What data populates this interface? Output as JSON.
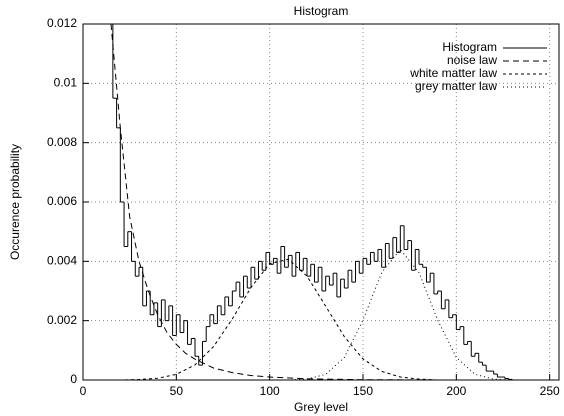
{
  "chart_data": {
    "type": "line",
    "title": "Histogram",
    "x_label": "Grey level",
    "y_label": "Occurence probability",
    "xlim": [
      0,
      255
    ],
    "ylim": [
      0,
      0.012
    ],
    "xticks": [
      0,
      50,
      100,
      150,
      200,
      250
    ],
    "yticks": [
      0,
      0.002,
      0.004,
      0.006,
      0.008,
      0.01,
      0.012
    ],
    "grid": true,
    "legend": "top right",
    "series": [
      {
        "name": "Histogram",
        "color": "#000000",
        "style": "steps",
        "x": [
          14,
          16,
          18,
          20,
          22,
          24,
          26,
          28,
          30,
          32,
          34,
          36,
          38,
          40,
          42,
          44,
          46,
          48,
          50,
          52,
          54,
          56,
          58,
          60,
          62,
          64,
          66,
          68,
          70,
          72,
          74,
          76,
          78,
          80,
          82,
          84,
          86,
          88,
          90,
          92,
          94,
          96,
          98,
          100,
          102,
          104,
          106,
          108,
          110,
          112,
          114,
          116,
          118,
          120,
          122,
          124,
          126,
          128,
          130,
          132,
          134,
          136,
          138,
          140,
          142,
          144,
          146,
          148,
          150,
          152,
          154,
          156,
          158,
          160,
          162,
          164,
          166,
          168,
          170,
          172,
          174,
          176,
          178,
          180,
          182,
          184,
          186,
          188,
          190,
          192,
          194,
          196,
          198,
          200,
          202,
          204,
          206,
          208,
          210,
          212,
          214,
          216,
          218,
          220,
          222,
          224,
          226,
          228,
          230
        ],
        "values": [
          0.012,
          0.0095,
          0.0085,
          0.006,
          0.0045,
          0.005,
          0.004,
          0.0035,
          0.0038,
          0.0025,
          0.003,
          0.0022,
          0.0026,
          0.0018,
          0.0027,
          0.002,
          0.0025,
          0.0015,
          0.0022,
          0.0016,
          0.002,
          0.0012,
          0.0014,
          0.0008,
          0.0005,
          0.0013,
          0.0018,
          0.0022,
          0.0019,
          0.0025,
          0.0022,
          0.0028,
          0.0025,
          0.003,
          0.0033,
          0.0028,
          0.0035,
          0.0031,
          0.0038,
          0.0034,
          0.004,
          0.0037,
          0.0043,
          0.0039,
          0.0041,
          0.0036,
          0.0045,
          0.0038,
          0.0042,
          0.0035,
          0.0043,
          0.0037,
          0.0041,
          0.0035,
          0.0039,
          0.0033,
          0.0038,
          0.003,
          0.0035,
          0.0032,
          0.0036,
          0.0028,
          0.0034,
          0.0031,
          0.0037,
          0.0033,
          0.004,
          0.0036,
          0.0041,
          0.0039,
          0.0043,
          0.004,
          0.0044,
          0.0038,
          0.0046,
          0.0041,
          0.0048,
          0.0043,
          0.0052,
          0.0044,
          0.0047,
          0.0037,
          0.0044,
          0.0039,
          0.0038,
          0.0033,
          0.0036,
          0.0029,
          0.003,
          0.0024,
          0.0027,
          0.0021,
          0.0022,
          0.0017,
          0.0018,
          0.0012,
          0.0013,
          0.0008,
          0.0009,
          0.0006,
          0.0005,
          0.0003,
          0.0003,
          0.0002,
          0.0001,
          0.0001,
          5e-05,
          2e-05,
          0
        ]
      },
      {
        "name": "noise law",
        "color": "#000000",
        "dash": "6,4",
        "x": [
          15,
          20,
          25,
          30,
          35,
          40,
          45,
          50,
          55,
          60,
          70,
          80,
          90,
          100,
          120,
          150,
          200,
          255
        ],
        "values": [
          0.012,
          0.0085,
          0.0055,
          0.004,
          0.003,
          0.0022,
          0.0016,
          0.0012,
          0.0009,
          0.0007,
          0.0004,
          0.00025,
          0.00015,
          0.0001,
          4e-05,
          1e-05,
          0,
          0
        ]
      },
      {
        "name": "white matter law",
        "color": "#000000",
        "dash": "3,3",
        "x": [
          0,
          20,
          30,
          40,
          50,
          60,
          70,
          80,
          90,
          100,
          110,
          120,
          130,
          140,
          150,
          160,
          170,
          180,
          190,
          255
        ],
        "values": [
          0,
          0,
          1.5e-05,
          6e-05,
          0.00019,
          0.00051,
          0.00113,
          0.00206,
          0.00312,
          0.00392,
          0.00407,
          0.0035,
          0.00249,
          0.00146,
          0.00071,
          0.00029,
          0.0001,
          3e-05,
          0,
          0
        ]
      },
      {
        "name": "grey matter law",
        "color": "#000000",
        "dash": "1,3",
        "x": [
          0,
          110,
          120,
          130,
          140,
          150,
          160,
          170,
          180,
          190,
          200,
          210,
          220,
          230,
          255
        ],
        "values": [
          0,
          0,
          3e-05,
          0.00019,
          0.00076,
          0.00202,
          0.00362,
          0.0044,
          0.00362,
          0.00202,
          0.00076,
          0.00019,
          3e-05,
          0,
          0
        ]
      }
    ]
  }
}
